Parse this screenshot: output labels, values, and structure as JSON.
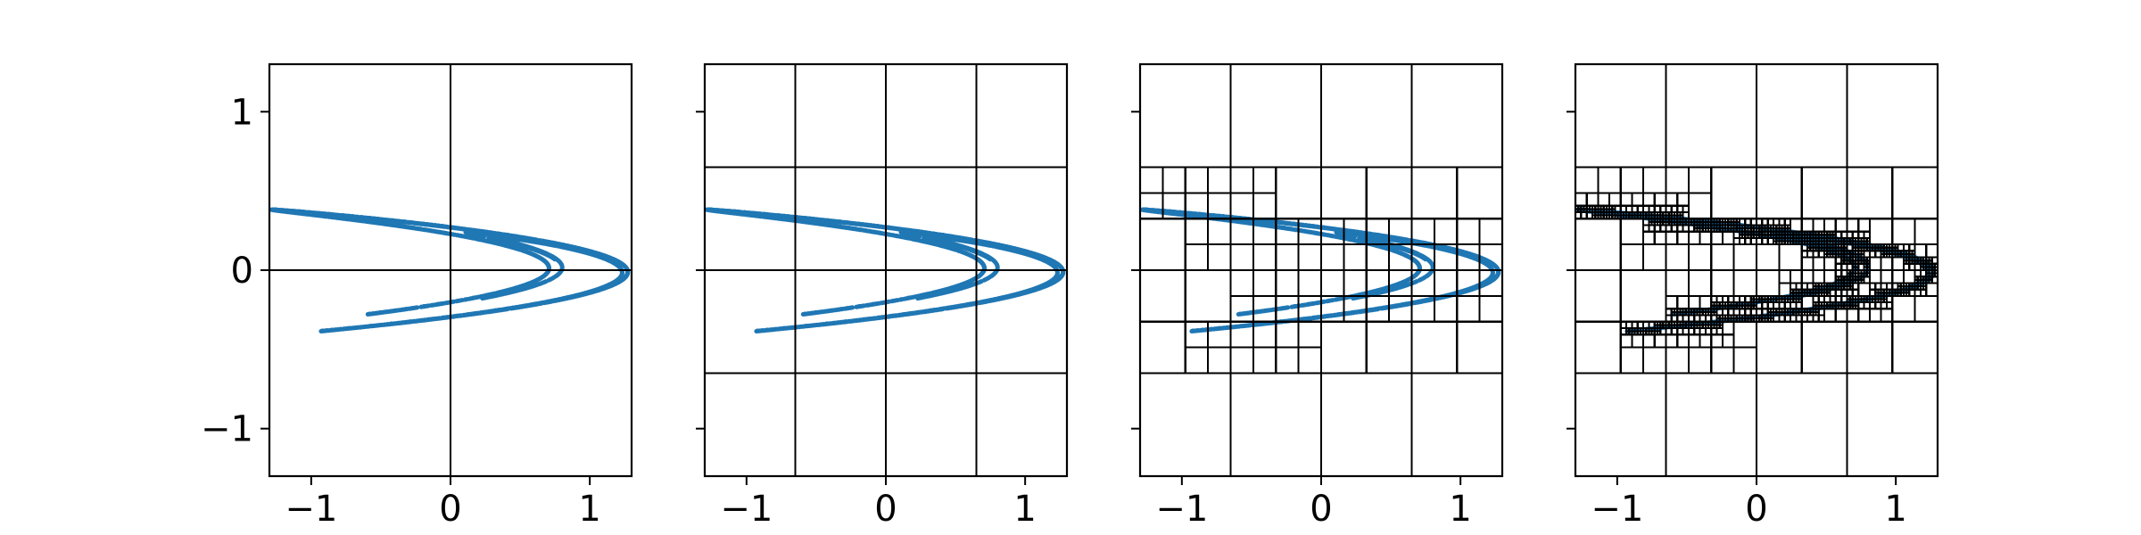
{
  "chart_data": [
    {
      "type": "scatter",
      "subplot": 1,
      "xlim": [
        -1.3,
        1.3
      ],
      "ylim": [
        -1.3,
        1.3
      ],
      "xticks": [
        "−1",
        "0",
        "1"
      ],
      "yticks": [
        "1",
        "0",
        "−1"
      ],
      "show_y_tick_labels": true,
      "series": [
        {
          "values": "Hénon attractor point cloud",
          "color": "#1f77b4"
        }
      ],
      "partition_level": 1
    },
    {
      "type": "scatter",
      "subplot": 2,
      "xlim": [
        -1.3,
        1.3
      ],
      "ylim": [
        -1.3,
        1.3
      ],
      "xticks": [
        "−1",
        "0",
        "1"
      ],
      "yticks": [
        "1",
        "0",
        "−1"
      ],
      "show_y_tick_labels": false,
      "partition_level": 2
    },
    {
      "type": "scatter",
      "subplot": 3,
      "xlim": [
        -1.3,
        1.3
      ],
      "ylim": [
        -1.3,
        1.3
      ],
      "xticks": [
        "−1",
        "0",
        "1"
      ],
      "yticks": [
        "1",
        "0",
        "−1"
      ],
      "show_y_tick_labels": false,
      "partition_level": 4
    },
    {
      "type": "scatter",
      "subplot": 4,
      "xlim": [
        -1.3,
        1.3
      ],
      "ylim": [
        -1.3,
        1.3
      ],
      "xticks": [
        "−1",
        "0",
        "1"
      ],
      "yticks": [
        "1",
        "0",
        "−1"
      ],
      "show_y_tick_labels": false,
      "partition_level": 7
    }
  ],
  "colors": {
    "points": "#1f77b4",
    "boxes": "#000000"
  }
}
